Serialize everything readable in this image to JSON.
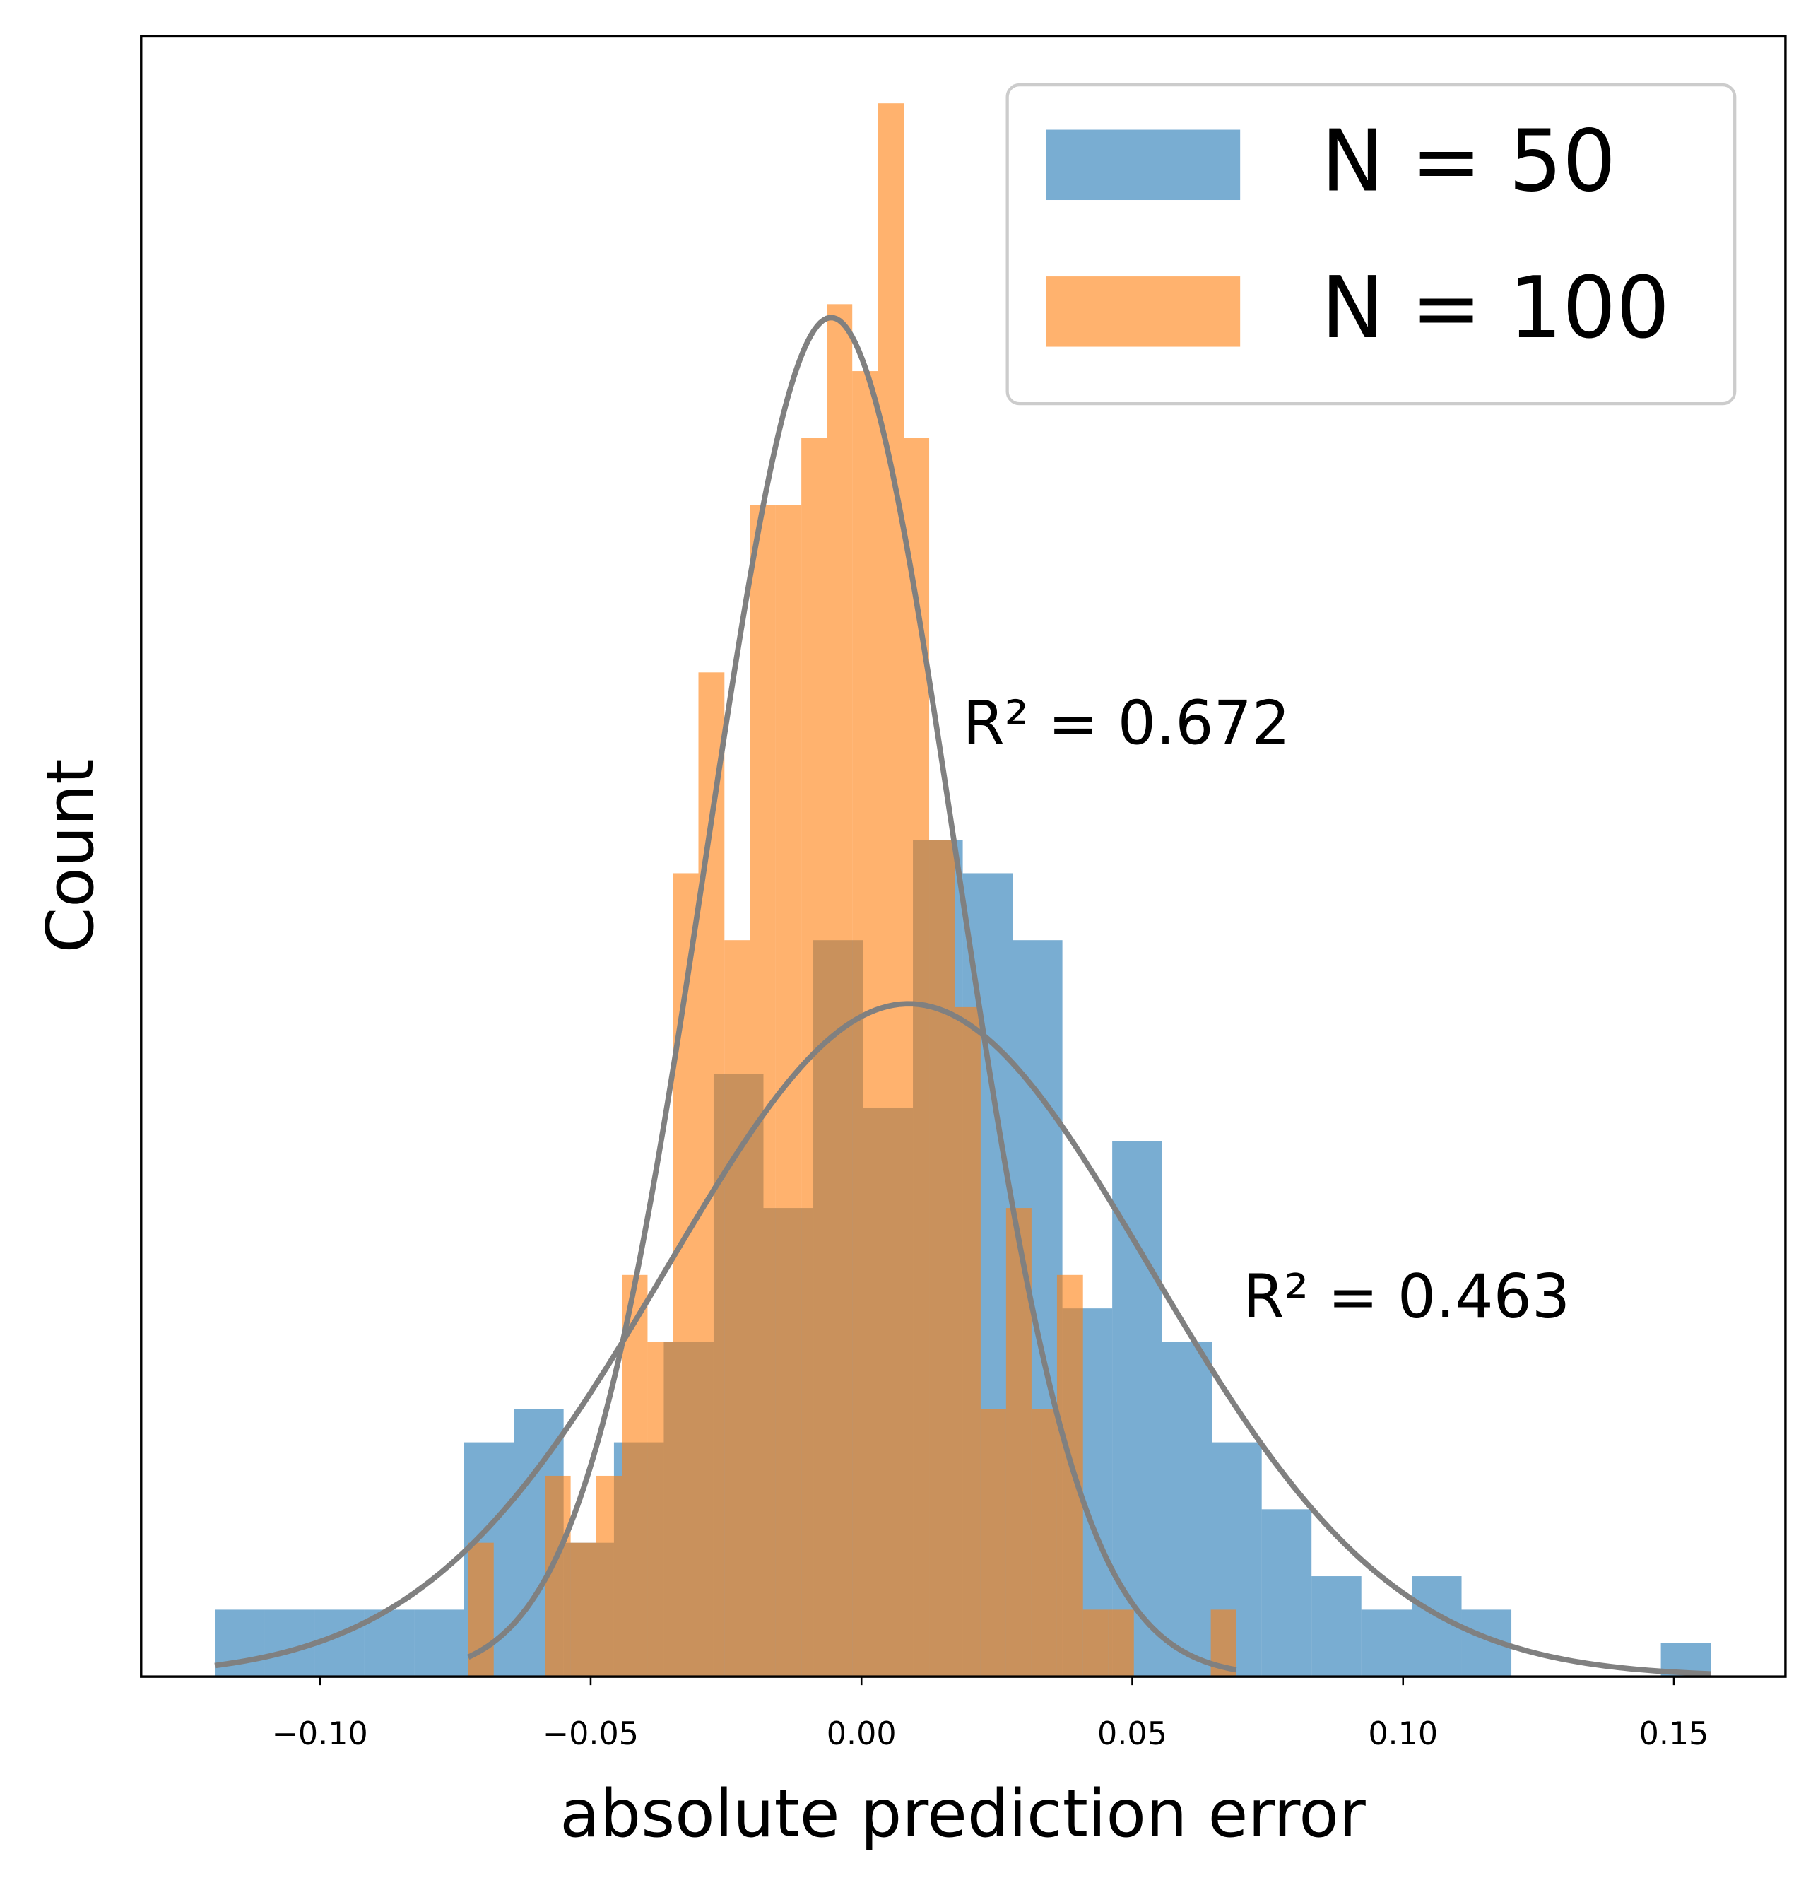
{
  "chart_data": {
    "type": "histogram",
    "xlabel": "absolute prediction error",
    "ylabel": "Count",
    "xlim": [
      -0.133,
      0.1706
    ],
    "ylim": [
      0,
      49
    ],
    "xticks": [
      {
        "value": -0.1,
        "label": "−0.10"
      },
      {
        "value": -0.05,
        "label": "−0.05"
      },
      {
        "value": 0,
        "label": "0.00"
      },
      0.05,
      {
        "value": 0.1,
        "label": "0.10"
      },
      0.15
    ],
    "alpha": 0.6,
    "legend": "upper right",
    "series": [
      {
        "name": "N = 50",
        "color": "#1f77b4",
        "bins": [
          -0.1194,
          -0.1102,
          -0.101,
          -0.0918,
          -0.0826,
          -0.0734,
          -0.0642,
          -0.055,
          -0.0457,
          -0.0365,
          -0.0273,
          -0.0181,
          -0.0089,
          0.0003,
          0.0095,
          0.0187,
          0.0279,
          0.0371,
          0.0463,
          0.0555,
          0.0647,
          0.0739,
          0.0831,
          0.0923,
          0.1016,
          0.1108,
          0.12,
          0.1292,
          0.1384,
          0.1476,
          0.1568
        ],
        "values": [
          2,
          2,
          2,
          2,
          2,
          7,
          8,
          4,
          7,
          10,
          18,
          14,
          22,
          17,
          25,
          24,
          22,
          11,
          16,
          10,
          7,
          5,
          3,
          2,
          3,
          2,
          0,
          0,
          0,
          1
        ],
        "fit": {
          "mean": 0.0087,
          "sd": 0.0447,
          "peak": 20.1
        }
      },
      {
        "name": "N = 100",
        "color": "#ff7f0e",
        "bins": [
          -0.0726,
          -0.0679,
          -0.0632,
          -0.0584,
          -0.0537,
          -0.049,
          -0.0442,
          -0.0395,
          -0.0348,
          -0.0301,
          -0.0253,
          -0.0206,
          -0.0159,
          -0.0111,
          -0.0064,
          -0.0017,
          0.003,
          0.0078,
          0.0125,
          0.0172,
          0.022,
          0.0267,
          0.0314,
          0.0361,
          0.0409,
          0.0456,
          0.0503,
          0.0551,
          0.0598,
          0.0645,
          0.0692
        ],
        "values": [
          4,
          0,
          0,
          6,
          4,
          6,
          12,
          10,
          24,
          30,
          22,
          35,
          35,
          37,
          41,
          39,
          47,
          37,
          25,
          20,
          8,
          14,
          8,
          12,
          2,
          2,
          0,
          0,
          0,
          2
        ],
        "fit": {
          "mean": -0.0056,
          "sd": 0.023,
          "peak": 40.6
        }
      }
    ],
    "annotations": [
      "R² = 0.672",
      "R² = 0.463"
    ]
  }
}
